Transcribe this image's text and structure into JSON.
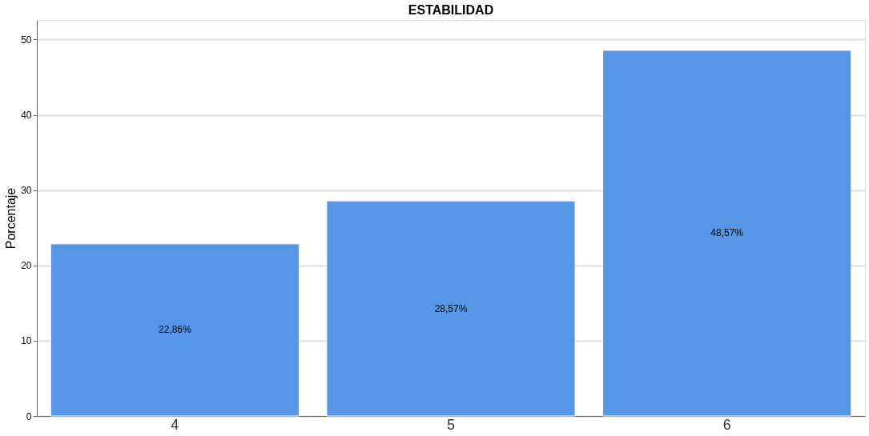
{
  "chart_data": {
    "type": "bar",
    "title": "ESTABILIDAD",
    "ylabel": "Porcentaje",
    "categories": [
      "4",
      "5",
      "6"
    ],
    "values": [
      22.86,
      28.57,
      48.57
    ],
    "value_labels": [
      "22,86%",
      "28,57%",
      "48,57%"
    ],
    "color": "#5596e6",
    "ylim": [
      0,
      52.6
    ],
    "yticks": [
      0,
      10,
      20,
      30,
      40,
      50
    ],
    "grid": "y"
  }
}
